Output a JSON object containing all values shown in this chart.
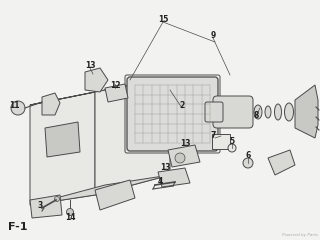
{
  "background_color": "#f2f2f0",
  "line_color": "#4a4a4a",
  "fill_light": "#e8e8e4",
  "fill_mid": "#d8d8d4",
  "fill_dark": "#c8c8c4",
  "watermark": "Powered by Parts",
  "label_F1": "F-1",
  "figsize": [
    3.2,
    2.4
  ],
  "dpi": 100
}
